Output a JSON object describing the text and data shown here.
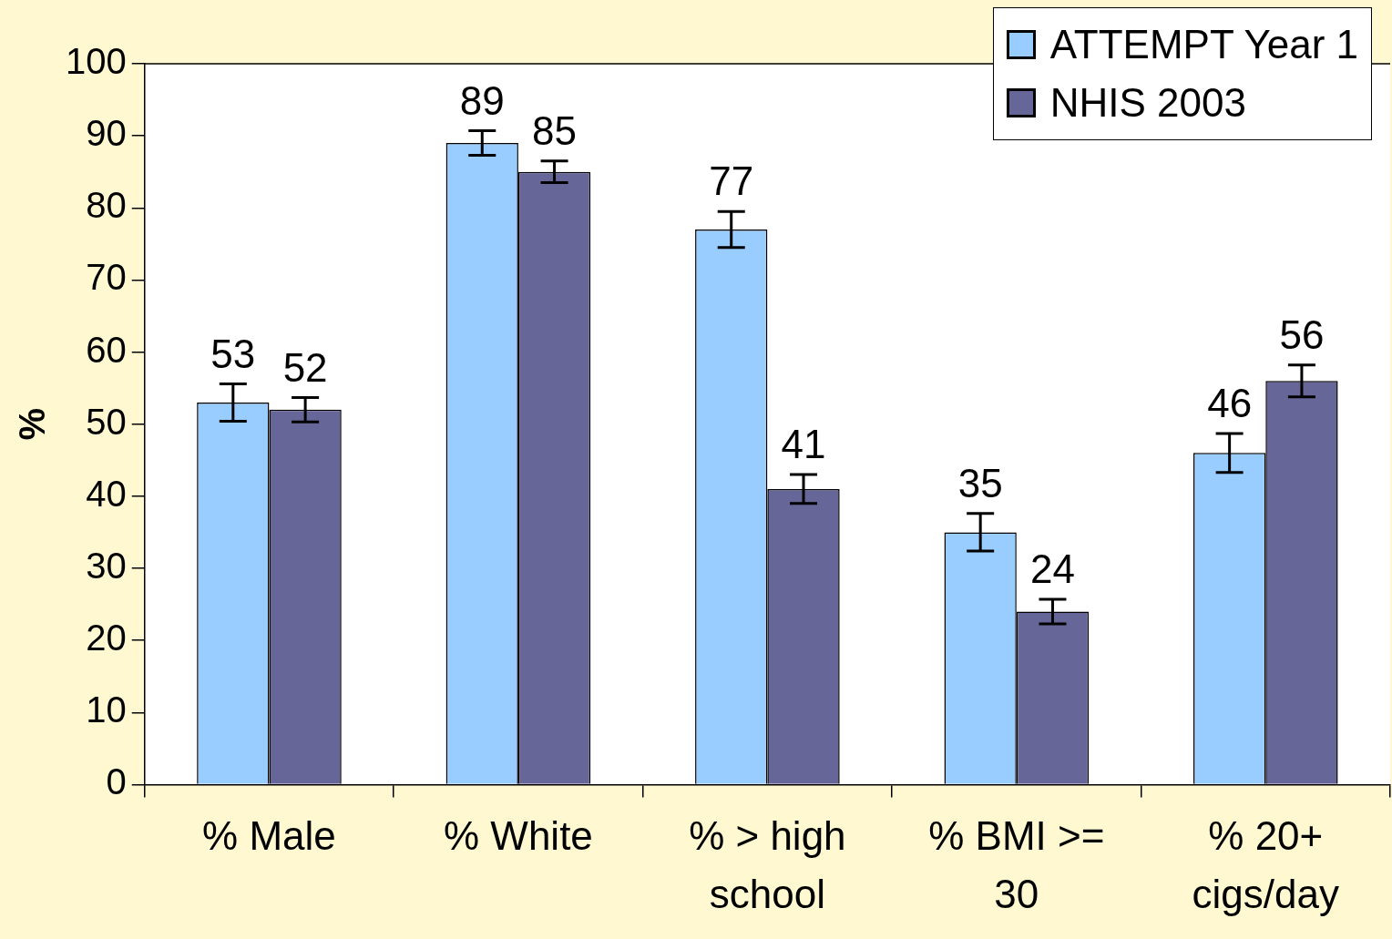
{
  "chart_data": {
    "type": "bar",
    "ylabel": "%",
    "categories": [
      "% Male",
      "% White",
      "% > high school",
      "% BMI >= 30",
      "% 20+ cigs/day"
    ],
    "series": [
      {
        "name": "ATTEMPT Year 1",
        "color": "#99ccff",
        "values": [
          53,
          89,
          77,
          35,
          46
        ],
        "errors": [
          2.6,
          1.7,
          2.5,
          2.6,
          2.7
        ]
      },
      {
        "name": "NHIS 2003",
        "color": "#666699",
        "values": [
          52,
          85,
          41,
          24,
          56
        ],
        "errors": [
          1.7,
          1.5,
          2,
          1.7,
          2.2
        ]
      }
    ],
    "ylim": [
      0,
      100
    ],
    "yticks": [
      0,
      10,
      20,
      30,
      40,
      50,
      60,
      70,
      80,
      90,
      100
    ],
    "grid": false,
    "legend": "top right",
    "data_labels": true
  }
}
